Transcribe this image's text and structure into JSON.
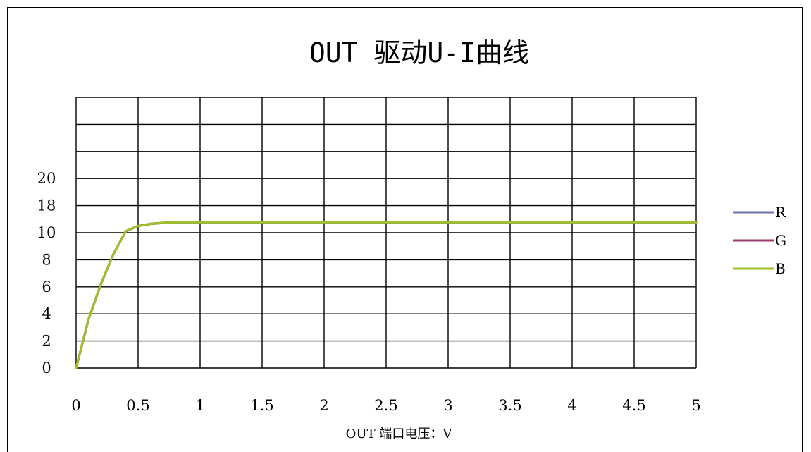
{
  "chart_data": {
    "type": "line",
    "title": "OUT 驱动U-I曲线",
    "xlabel": "OUT 端口电压：V",
    "ylabel": "",
    "xlim": [
      0,
      5
    ],
    "x_ticks": [
      "0",
      "0.5",
      "1",
      "1.5",
      "2",
      "2.5",
      "3",
      "3.5",
      "4",
      "4.5",
      "5"
    ],
    "y_ticks": [
      "0",
      "2",
      "4",
      "6",
      "8",
      "10",
      "18",
      "20"
    ],
    "grid": true,
    "legend": "right",
    "series": [
      {
        "name": "R",
        "color": "#7070b0",
        "x": [
          0,
          0.1,
          0.2,
          0.3,
          0.4,
          0.45,
          0.5,
          0.6,
          0.7,
          0.8,
          0.85,
          1,
          1.5,
          2,
          2.5,
          3,
          3.5,
          4,
          4.5,
          5
        ],
        "y": [
          0,
          3.6,
          6.2,
          8.4,
          10.4,
          11.2,
          12,
          12.6,
          12.9,
          13.1,
          13.1,
          13.1,
          13.1,
          13.1,
          13.1,
          13.1,
          13.1,
          13.1,
          13.1,
          13.1
        ]
      },
      {
        "name": "G",
        "color": "#9b3b6a",
        "x": [
          0,
          0.1,
          0.2,
          0.3,
          0.4,
          0.45,
          0.5,
          0.6,
          0.7,
          0.8,
          0.85,
          1,
          1.5,
          2,
          2.5,
          3,
          3.5,
          4,
          4.5,
          5
        ],
        "y": [
          0,
          3.6,
          6.2,
          8.4,
          10.4,
          11.2,
          12,
          12.6,
          12.9,
          13.1,
          13.1,
          13.1,
          13.1,
          13.1,
          13.1,
          13.1,
          13.1,
          13.1,
          13.1,
          13.1
        ]
      },
      {
        "name": "B",
        "color": "#9cbf2a",
        "x": [
          0,
          0.1,
          0.2,
          0.3,
          0.4,
          0.45,
          0.5,
          0.6,
          0.7,
          0.8,
          0.85,
          1,
          1.5,
          2,
          2.5,
          3,
          3.5,
          4,
          4.5,
          5
        ],
        "y": [
          0,
          3.6,
          6.2,
          8.4,
          10.4,
          11.2,
          12,
          12.6,
          12.9,
          13.1,
          13.1,
          13.1,
          13.1,
          13.1,
          13.1,
          13.1,
          13.1,
          13.1,
          13.1,
          13.1
        ]
      }
    ]
  }
}
